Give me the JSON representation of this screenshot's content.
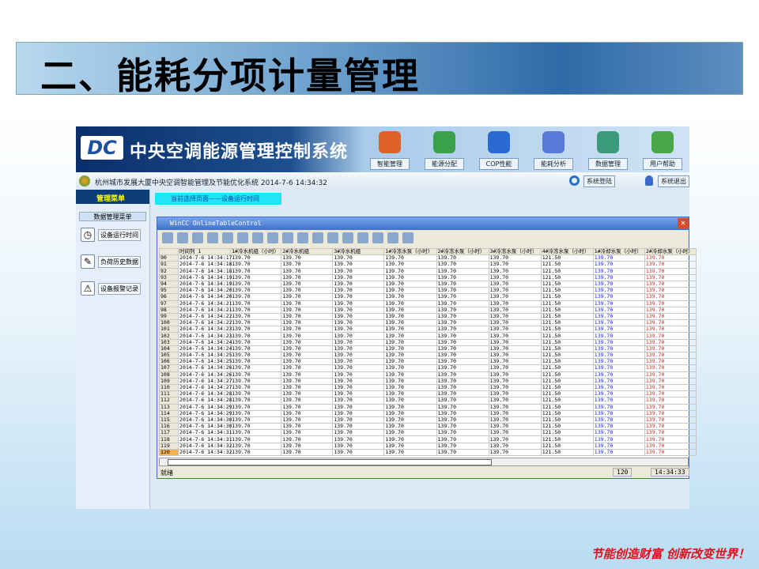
{
  "slide_title": "二、能耗分项计量管理",
  "slogan": "节能创造财富 创新改变世界！",
  "app": {
    "logo": "DC",
    "system_name": "中央空调能源管理控制系统",
    "nav": [
      {
        "label": "智能管理",
        "icon": "home-icon",
        "color": "#e0602a"
      },
      {
        "label": "能源分配",
        "icon": "energy-globe-icon",
        "color": "#3aa04a"
      },
      {
        "label": "COP性能",
        "icon": "globe-pen-icon",
        "color": "#2a6ad0"
      },
      {
        "label": "能耗分析",
        "icon": "document-pen-icon",
        "color": "#5a7ad8"
      },
      {
        "label": "数据管理",
        "icon": "data-folder-icon",
        "color": "#3a9a7a"
      },
      {
        "label": "用户帮助",
        "icon": "users-icon",
        "color": "#4aa84a"
      }
    ],
    "subheader": "杭州城市发展大厦中央空调智能管理及节能优化系统  2014-7-6 14:34:32",
    "login_btn": "系统登陆",
    "logout_btn": "系统退出",
    "sidebar": {
      "title": "管理菜单",
      "section": "数据管理菜单",
      "items": [
        {
          "label": "设备运行时间",
          "icon": "clock-icon"
        },
        {
          "label": "负荷历史数据",
          "icon": "chart-pen-icon"
        },
        {
          "label": "设备报警记录",
          "icon": "warning-icon"
        }
      ]
    },
    "current_page": "当前选择页面——设备运行时间",
    "window": {
      "title": "WinCC OnlineTableControl",
      "columns": [
        "",
        "时间列 1",
        "1#冷水机组（小时）",
        "2#冷水机组",
        "3#冷水机组",
        "1#冷冻水泵（小时）",
        "2#冷冻水泵（小时）",
        "3#冷冻水泵（小时）",
        "4#冷冻水泵（小时）",
        "1#冷却水泵（小时）",
        "2#冷却水泵（小时）"
      ],
      "rows": [
        [
          "90",
          "2014-7-6 14:34:17"
        ],
        [
          "91",
          "2014-7-6 14:34:18"
        ],
        [
          "92",
          "2014-7-6 14:34:18"
        ],
        [
          "93",
          "2014-7-6 14:34:19"
        ],
        [
          "94",
          "2014-7-6 14:34:19"
        ],
        [
          "95",
          "2014-7-6 14:34:20"
        ],
        [
          "96",
          "2014-7-6 14:34:20"
        ],
        [
          "97",
          "2014-7-6 14:34:21"
        ],
        [
          "98",
          "2014-7-6 14:34:21"
        ],
        [
          "99",
          "2014-7-6 14:34:22"
        ],
        [
          "100",
          "2014-7-6 14:34:22"
        ],
        [
          "101",
          "2014-7-6 14:34:23"
        ],
        [
          "102",
          "2014-7-6 14:34:23"
        ],
        [
          "103",
          "2014-7-6 14:34:24"
        ],
        [
          "104",
          "2014-7-6 14:34:24"
        ],
        [
          "105",
          "2014-7-6 14:34:25"
        ],
        [
          "106",
          "2014-7-6 14:34:25"
        ],
        [
          "107",
          "2014-7-6 14:34:26"
        ],
        [
          "108",
          "2014-7-6 14:34:26"
        ],
        [
          "109",
          "2014-7-6 14:34:27"
        ],
        [
          "110",
          "2014-7-6 14:34:27"
        ],
        [
          "111",
          "2014-7-6 14:34:28"
        ],
        [
          "112",
          "2014-7-6 14:34:28"
        ],
        [
          "113",
          "2014-7-6 14:34:29"
        ],
        [
          "114",
          "2014-7-6 14:34:29"
        ],
        [
          "115",
          "2014-7-6 14:34:30"
        ],
        [
          "116",
          "2014-7-6 14:34:30"
        ],
        [
          "117",
          "2014-7-6 14:34:31"
        ],
        [
          "118",
          "2014-7-6 14:34:31"
        ],
        [
          "119",
          "2014-7-6 14:34:32"
        ],
        [
          "120",
          "2014-7-6 14:34:32"
        ]
      ],
      "values": [
        "139.70",
        "139.70",
        "139.70",
        "139.70",
        "139.70",
        "139.70",
        "121.50",
        "139.70",
        "139.70"
      ],
      "selected_row": "120",
      "status": "就绪",
      "row_count": "120",
      "time": "14:34:33",
      "colors": {
        "col9": "#2020e0",
        "col10": "#e02020"
      }
    }
  }
}
